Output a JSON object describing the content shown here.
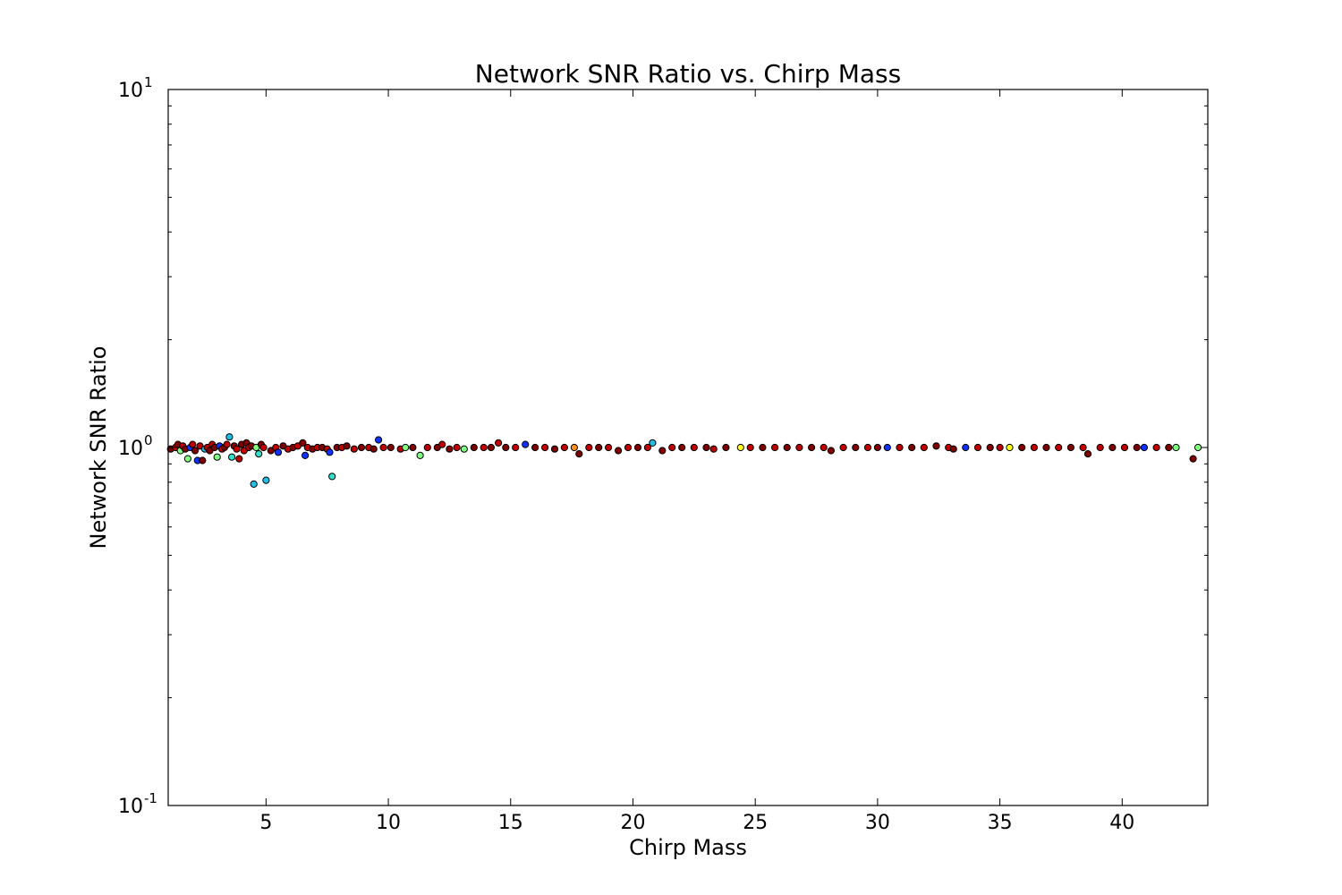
{
  "chart_data": {
    "type": "scatter",
    "title": "Network SNR Ratio vs. Chirp Mass",
    "xlabel": "Chirp Mass",
    "ylabel": "Network SNR Ratio",
    "xlim": [
      1.0,
      43.5
    ],
    "ylim": [
      0.1,
      10
    ],
    "yscale": "log",
    "grid": false,
    "x_ticks": [
      {
        "value": 5,
        "label": "5"
      },
      {
        "value": 10,
        "label": "10"
      },
      {
        "value": 15,
        "label": "15"
      },
      {
        "value": 20,
        "label": "20"
      },
      {
        "value": 25,
        "label": "25"
      },
      {
        "value": 30,
        "label": "30"
      },
      {
        "value": 35,
        "label": "35"
      },
      {
        "value": 40,
        "label": "40"
      }
    ],
    "y_ticks": [
      {
        "value": 10,
        "base": "10",
        "exp": "1"
      },
      {
        "value": 1,
        "base": "10",
        "exp": "0"
      },
      {
        "value": 0.1,
        "base": "10",
        "exp": "-1"
      }
    ],
    "colors": {
      "red": "#c00000",
      "darkred": "#7f0000",
      "blue": "#1030ff",
      "cyan": "#20c0e8",
      "aqua": "#30e0c8",
      "green": "#80ff80",
      "yellow": "#ffff20",
      "orange": "#ff9020"
    },
    "points": [
      [
        1.1,
        0.99,
        "darkred"
      ],
      [
        1.3,
        1.0,
        "red"
      ],
      [
        1.4,
        1.02,
        "darkred"
      ],
      [
        1.5,
        0.98,
        "green"
      ],
      [
        1.6,
        1.01,
        "red"
      ],
      [
        1.7,
        0.99,
        "darkred"
      ],
      [
        1.8,
        0.93,
        "green"
      ],
      [
        1.9,
        1.0,
        "blue"
      ],
      [
        2.0,
        1.02,
        "red"
      ],
      [
        2.1,
        0.98,
        "darkred"
      ],
      [
        2.2,
        0.92,
        "blue"
      ],
      [
        2.3,
        1.01,
        "red"
      ],
      [
        2.4,
        0.92,
        "darkred"
      ],
      [
        2.5,
        0.99,
        "cyan"
      ],
      [
        2.6,
        1.0,
        "red"
      ],
      [
        2.7,
        0.98,
        "darkred"
      ],
      [
        2.8,
        1.02,
        "red"
      ],
      [
        2.9,
        1.0,
        "darkred"
      ],
      [
        3.0,
        0.94,
        "green"
      ],
      [
        3.1,
        1.01,
        "blue"
      ],
      [
        3.2,
        0.99,
        "red"
      ],
      [
        3.3,
        1.0,
        "darkred"
      ],
      [
        3.4,
        1.02,
        "red"
      ],
      [
        3.5,
        1.07,
        "cyan"
      ],
      [
        3.6,
        0.94,
        "aqua"
      ],
      [
        3.7,
        1.01,
        "darkred"
      ],
      [
        3.8,
        0.99,
        "red"
      ],
      [
        3.9,
        0.93,
        "red"
      ],
      [
        4.0,
        1.02,
        "darkred"
      ],
      [
        4.1,
        0.98,
        "red"
      ],
      [
        4.2,
        1.03,
        "darkred"
      ],
      [
        4.3,
        1.0,
        "red"
      ],
      [
        4.4,
        1.01,
        "darkred"
      ],
      [
        4.5,
        0.79,
        "cyan"
      ],
      [
        4.6,
        1.0,
        "green"
      ],
      [
        4.7,
        0.96,
        "aqua"
      ],
      [
        4.8,
        1.02,
        "darkred"
      ],
      [
        4.9,
        1.0,
        "red"
      ],
      [
        5.0,
        0.81,
        "cyan"
      ],
      [
        5.2,
        0.98,
        "darkred"
      ],
      [
        5.4,
        1.0,
        "red"
      ],
      [
        5.5,
        0.97,
        "blue"
      ],
      [
        5.7,
        1.01,
        "darkred"
      ],
      [
        5.9,
        0.99,
        "red"
      ],
      [
        6.1,
        1.0,
        "darkred"
      ],
      [
        6.3,
        1.01,
        "red"
      ],
      [
        6.5,
        1.03,
        "darkred"
      ],
      [
        6.6,
        0.95,
        "blue"
      ],
      [
        6.7,
        1.0,
        "red"
      ],
      [
        6.9,
        0.99,
        "darkred"
      ],
      [
        7.1,
        1.0,
        "red"
      ],
      [
        7.3,
        1.0,
        "darkred"
      ],
      [
        7.5,
        0.99,
        "red"
      ],
      [
        7.6,
        0.97,
        "blue"
      ],
      [
        7.7,
        0.83,
        "aqua"
      ],
      [
        7.9,
        1.0,
        "darkred"
      ],
      [
        8.1,
        1.0,
        "red"
      ],
      [
        8.3,
        1.01,
        "darkred"
      ],
      [
        8.6,
        0.99,
        "red"
      ],
      [
        8.9,
        1.0,
        "darkred"
      ],
      [
        9.2,
        1.0,
        "red"
      ],
      [
        9.4,
        0.99,
        "darkred"
      ],
      [
        9.6,
        1.05,
        "blue"
      ],
      [
        9.8,
        1.0,
        "red"
      ],
      [
        10.1,
        1.0,
        "darkred"
      ],
      [
        10.5,
        0.99,
        "red"
      ],
      [
        10.7,
        1.0,
        "green"
      ],
      [
        11.0,
        1.0,
        "darkred"
      ],
      [
        11.3,
        0.95,
        "green"
      ],
      [
        11.6,
        1.0,
        "red"
      ],
      [
        12.0,
        1.0,
        "darkred"
      ],
      [
        12.2,
        1.02,
        "red"
      ],
      [
        12.5,
        0.99,
        "darkred"
      ],
      [
        12.8,
        1.0,
        "red"
      ],
      [
        13.1,
        0.99,
        "green"
      ],
      [
        13.5,
        1.0,
        "darkred"
      ],
      [
        13.9,
        1.0,
        "red"
      ],
      [
        14.2,
        1.0,
        "darkred"
      ],
      [
        14.5,
        1.03,
        "red"
      ],
      [
        14.8,
        1.0,
        "darkred"
      ],
      [
        15.2,
        1.0,
        "red"
      ],
      [
        15.6,
        1.02,
        "blue"
      ],
      [
        16.0,
        1.0,
        "darkred"
      ],
      [
        16.4,
        1.0,
        "red"
      ],
      [
        16.8,
        0.99,
        "darkred"
      ],
      [
        17.2,
        1.0,
        "red"
      ],
      [
        17.6,
        1.0,
        "orange"
      ],
      [
        17.8,
        0.96,
        "darkred"
      ],
      [
        18.2,
        1.0,
        "red"
      ],
      [
        18.6,
        1.0,
        "darkred"
      ],
      [
        19.0,
        1.0,
        "red"
      ],
      [
        19.4,
        0.98,
        "darkred"
      ],
      [
        19.8,
        1.0,
        "red"
      ],
      [
        20.2,
        1.0,
        "darkred"
      ],
      [
        20.6,
        1.0,
        "red"
      ],
      [
        20.8,
        1.03,
        "cyan"
      ],
      [
        21.2,
        0.98,
        "darkred"
      ],
      [
        21.6,
        1.0,
        "red"
      ],
      [
        22.0,
        1.0,
        "darkred"
      ],
      [
        22.5,
        1.0,
        "red"
      ],
      [
        23.0,
        1.0,
        "darkred"
      ],
      [
        23.3,
        0.99,
        "red"
      ],
      [
        23.8,
        1.0,
        "darkred"
      ],
      [
        24.4,
        1.0,
        "yellow"
      ],
      [
        24.8,
        1.0,
        "red"
      ],
      [
        25.3,
        1.0,
        "darkred"
      ],
      [
        25.8,
        1.0,
        "red"
      ],
      [
        26.3,
        1.0,
        "darkred"
      ],
      [
        26.8,
        1.0,
        "red"
      ],
      [
        27.3,
        1.0,
        "darkred"
      ],
      [
        27.8,
        1.0,
        "red"
      ],
      [
        28.1,
        0.98,
        "darkred"
      ],
      [
        28.6,
        1.0,
        "red"
      ],
      [
        29.1,
        1.0,
        "darkred"
      ],
      [
        29.6,
        1.0,
        "red"
      ],
      [
        30.0,
        1.0,
        "darkred"
      ],
      [
        30.4,
        1.0,
        "blue"
      ],
      [
        30.9,
        1.0,
        "red"
      ],
      [
        31.4,
        1.0,
        "darkred"
      ],
      [
        31.9,
        1.0,
        "red"
      ],
      [
        32.4,
        1.01,
        "darkred"
      ],
      [
        32.9,
        1.0,
        "red"
      ],
      [
        33.1,
        0.99,
        "darkred"
      ],
      [
        33.6,
        1.0,
        "blue"
      ],
      [
        34.1,
        1.0,
        "red"
      ],
      [
        34.6,
        1.0,
        "darkred"
      ],
      [
        35.0,
        1.0,
        "red"
      ],
      [
        35.4,
        1.0,
        "yellow"
      ],
      [
        35.9,
        1.0,
        "darkred"
      ],
      [
        36.4,
        1.0,
        "red"
      ],
      [
        36.9,
        1.0,
        "darkred"
      ],
      [
        37.4,
        1.0,
        "red"
      ],
      [
        37.9,
        1.0,
        "darkred"
      ],
      [
        38.4,
        1.0,
        "red"
      ],
      [
        38.6,
        0.96,
        "darkred"
      ],
      [
        39.1,
        1.0,
        "red"
      ],
      [
        39.6,
        1.0,
        "darkred"
      ],
      [
        40.1,
        1.0,
        "red"
      ],
      [
        40.6,
        1.0,
        "darkred"
      ],
      [
        40.9,
        1.0,
        "blue"
      ],
      [
        41.4,
        1.0,
        "red"
      ],
      [
        41.9,
        1.0,
        "darkred"
      ],
      [
        42.2,
        1.0,
        "green"
      ],
      [
        42.9,
        0.93,
        "darkred"
      ],
      [
        43.1,
        1.0,
        "green"
      ]
    ]
  }
}
